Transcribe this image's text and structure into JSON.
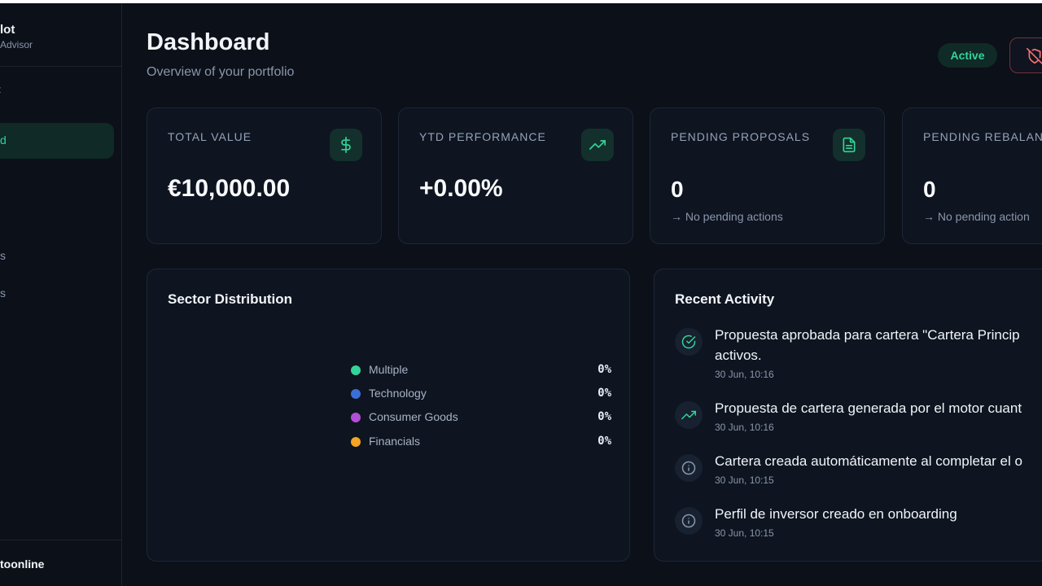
{
  "sidebar": {
    "brand_title": "lot",
    "brand_subtitle": "Advisor",
    "collapse_glyph": "‹",
    "active_item": "d",
    "items": [
      "s",
      "s"
    ],
    "user": "toonline"
  },
  "header": {
    "title": "Dashboard",
    "subtitle": "Overview of your portfolio",
    "status": "Active",
    "action_icon": "shield-off-icon"
  },
  "stats": [
    {
      "label": "TOTAL VALUE",
      "value": "€10,000.00",
      "note": "",
      "icon": "dollar-icon"
    },
    {
      "label": "YTD PERFORMANCE",
      "value": "+0.00%",
      "note": "",
      "icon": "trending-up-icon"
    },
    {
      "label": "PENDING PROPOSALS",
      "value": "0",
      "note": "→ No pending actions",
      "icon": "document-icon"
    },
    {
      "label": "PENDING REBALAN",
      "value": "0",
      "note": "→ No pending action",
      "icon": ""
    }
  ],
  "sectors": {
    "title": "Sector Distribution",
    "items": [
      {
        "name": "Multiple",
        "pct": "0%",
        "color": "#34d399"
      },
      {
        "name": "Technology",
        "pct": "0%",
        "color": "#3b6fd8"
      },
      {
        "name": "Consumer Goods",
        "pct": "0%",
        "color": "#b150d4"
      },
      {
        "name": "Financials",
        "pct": "0%",
        "color": "#f5a524"
      }
    ]
  },
  "activity": {
    "title": "Recent Activity",
    "items": [
      {
        "text": "Propuesta aprobada para cartera \"Cartera Princip",
        "text2": "activos.",
        "time": "30 Jun, 10:16",
        "icon": "check-circle-icon"
      },
      {
        "text": "Propuesta de cartera generada por el motor cuant",
        "text2": "",
        "time": "30 Jun, 10:16",
        "icon": "trending-up-icon"
      },
      {
        "text": "Cartera creada automáticamente al completar el o",
        "text2": "",
        "time": "30 Jun, 10:15",
        "icon": "info-icon"
      },
      {
        "text": "Perfil de inversor creado en onboarding",
        "text2": "",
        "time": "30 Jun, 10:15",
        "icon": "info-icon"
      }
    ]
  },
  "colors": {
    "accent": "#34d399",
    "danger": "#f87171",
    "background": "#0b1019",
    "card": "#0e1420"
  }
}
